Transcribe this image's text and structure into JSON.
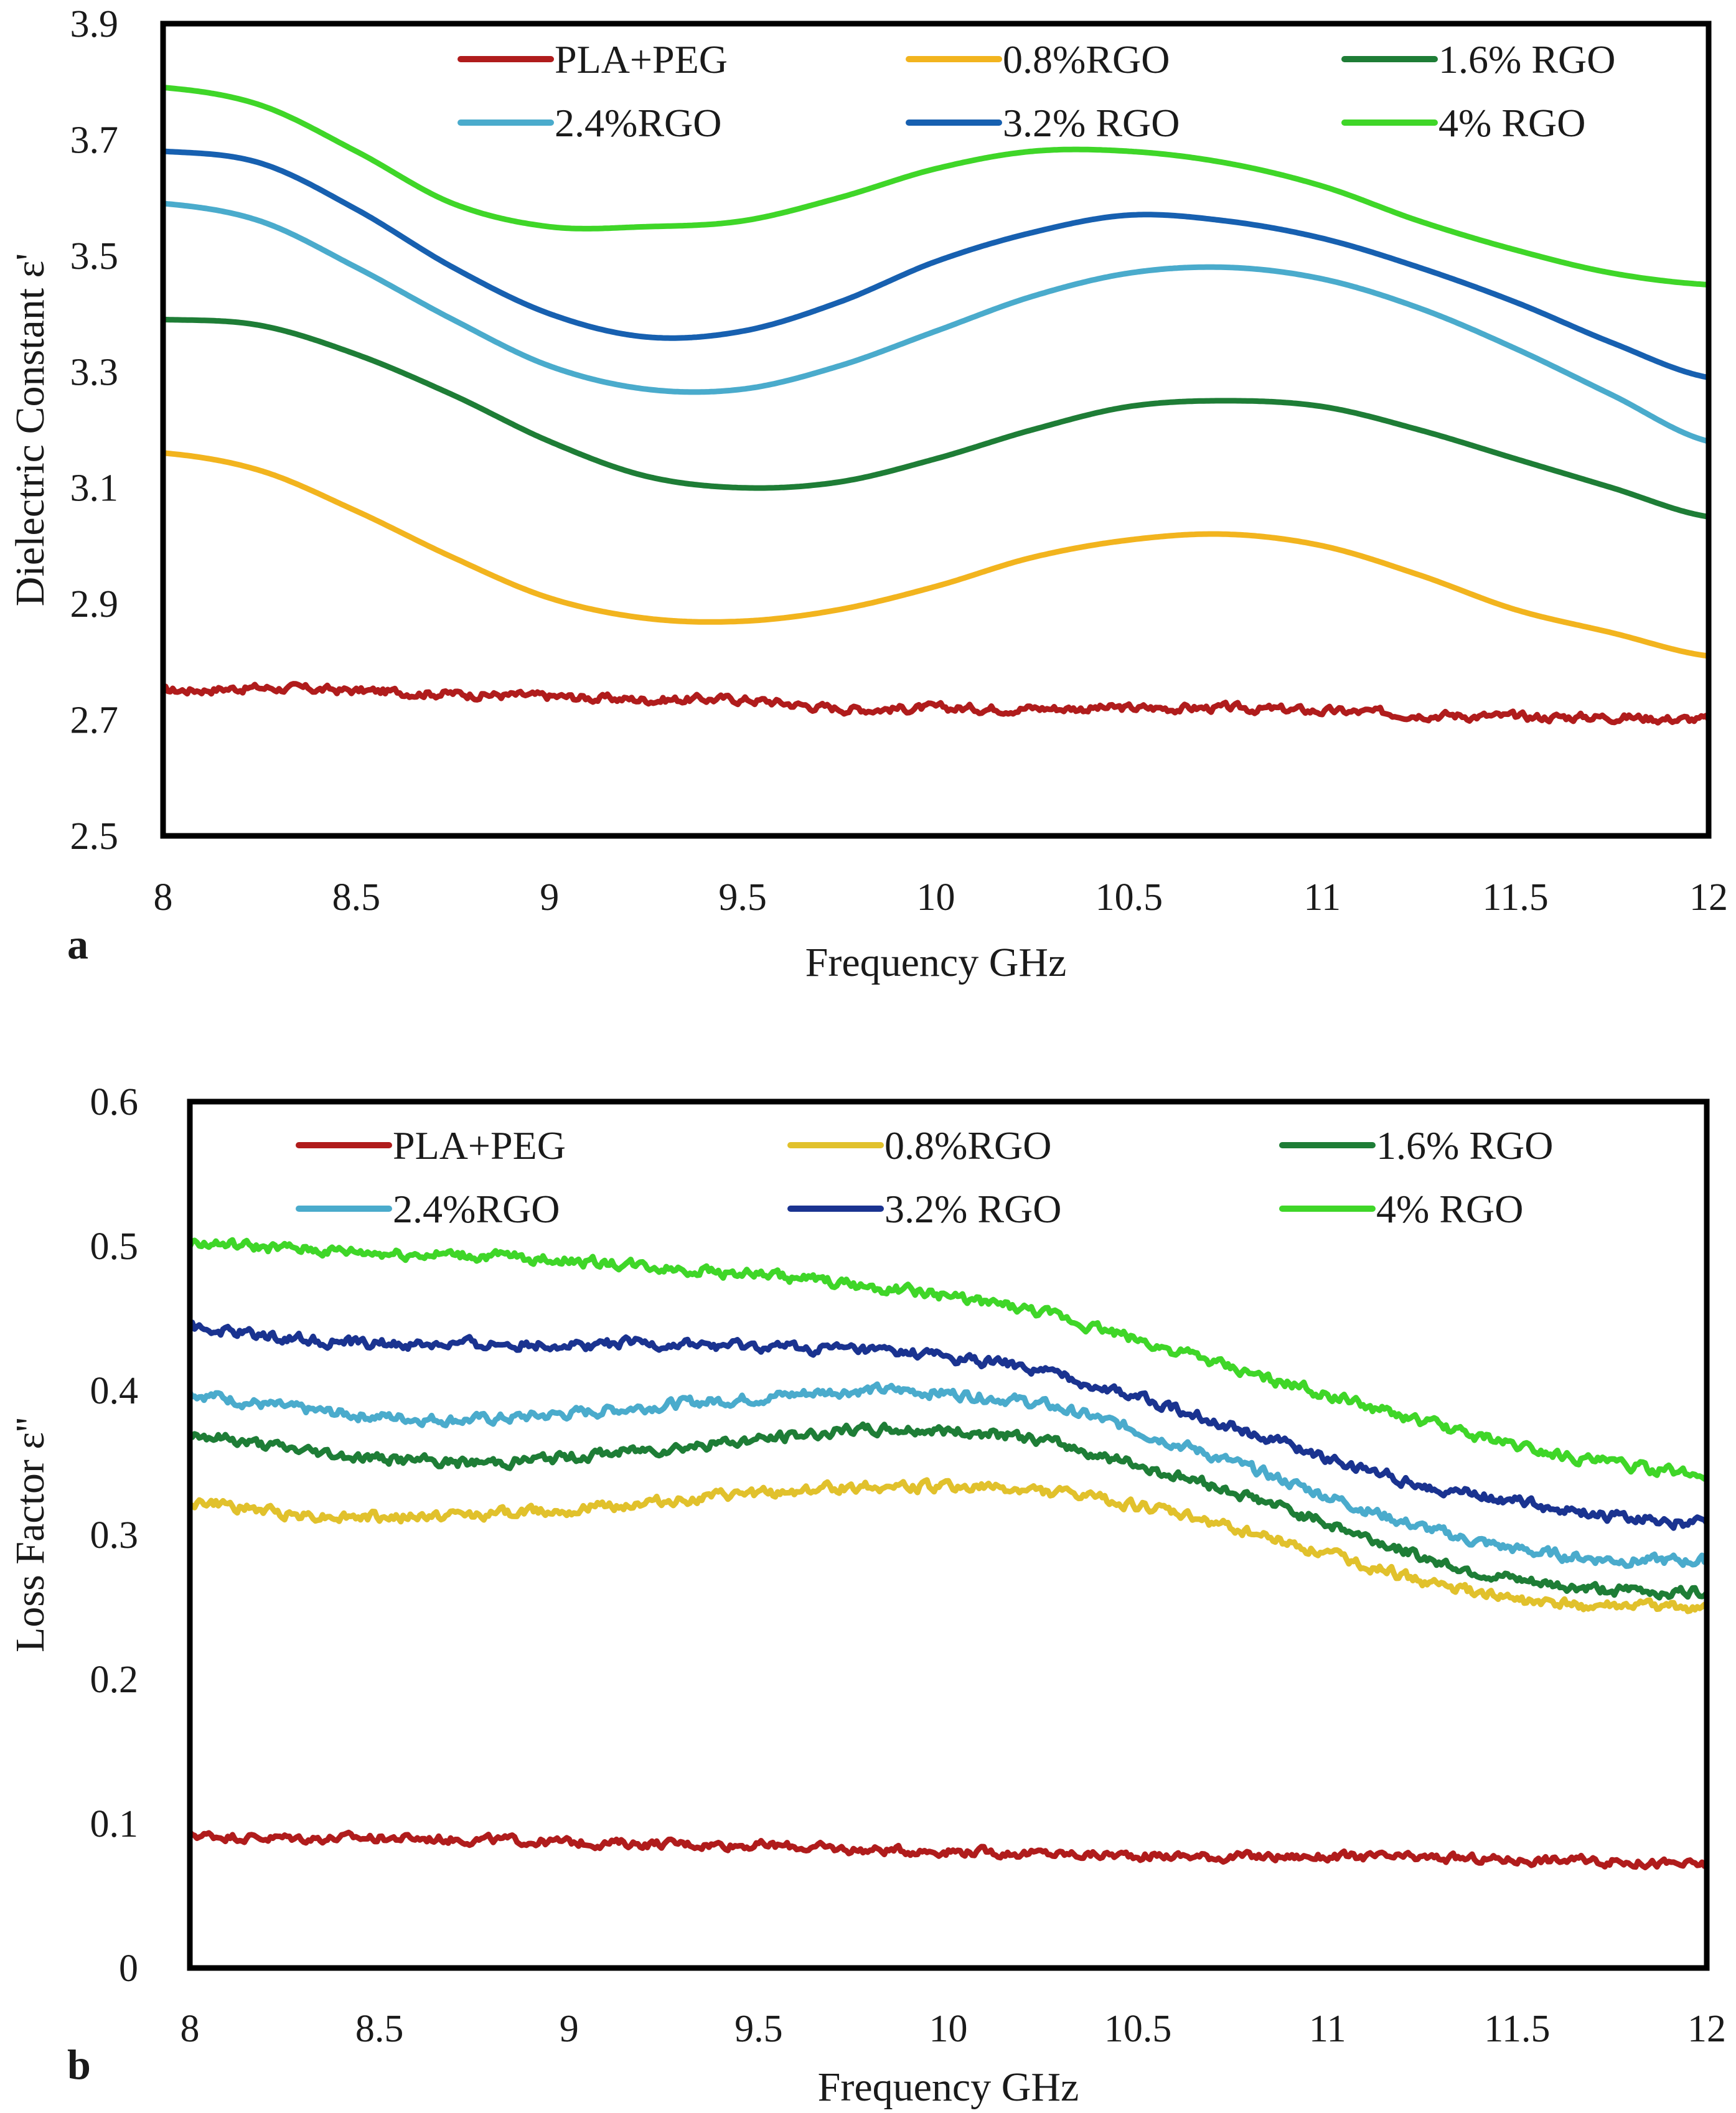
{
  "chart_data": [
    {
      "type": "line",
      "panel_label": "a",
      "title": "",
      "xlabel": "Frequency GHz",
      "ylabel": "Dielectric Constant ε'",
      "xlim": [
        8,
        12
      ],
      "ylim": [
        2.5,
        3.9
      ],
      "x_ticks": [
        "8",
        "8.5",
        "9",
        "9.5",
        "10",
        "10.5",
        "11",
        "11.5",
        "12"
      ],
      "y_ticks": [
        "2.5",
        "2.7",
        "2.9",
        "3.1",
        "3.3",
        "3.5",
        "3.7",
        "3.9"
      ],
      "grid": false,
      "legend_position": "top",
      "x": [
        8,
        8.25,
        8.5,
        8.75,
        9,
        9.25,
        9.5,
        9.75,
        10,
        10.25,
        10.5,
        10.75,
        11,
        11.25,
        11.5,
        11.75,
        12
      ],
      "series": [
        {
          "name": "PLA+PEG",
          "color": "#b01c1c",
          "noise": 0.006,
          "values": [
            2.75,
            2.755,
            2.75,
            2.745,
            2.74,
            2.735,
            2.735,
            2.72,
            2.72,
            2.72,
            2.72,
            2.72,
            2.715,
            2.71,
            2.705,
            2.705,
            2.7
          ]
        },
        {
          "name": "0.8%RGO",
          "color": "#f2b41e",
          "noise": 0,
          "values": [
            3.16,
            3.13,
            3.06,
            2.98,
            2.91,
            2.875,
            2.87,
            2.89,
            2.93,
            2.98,
            3.01,
            3.02,
            3.0,
            2.95,
            2.89,
            2.85,
            2.81
          ]
        },
        {
          "name": "1.6% RGO",
          "color": "#1e7d36",
          "noise": 0,
          "values": [
            3.39,
            3.38,
            3.33,
            3.26,
            3.18,
            3.12,
            3.1,
            3.11,
            3.15,
            3.2,
            3.24,
            3.25,
            3.24,
            3.2,
            3.15,
            3.1,
            3.05
          ]
        },
        {
          "name": "2.4%RGO",
          "color": "#4aabcc",
          "noise": 0,
          "values": [
            3.59,
            3.56,
            3.48,
            3.39,
            3.31,
            3.27,
            3.27,
            3.31,
            3.37,
            3.43,
            3.47,
            3.48,
            3.46,
            3.41,
            3.34,
            3.26,
            3.18
          ]
        },
        {
          "name": "3.2% RGO",
          "color": "#1760b0",
          "noise": 0,
          "values": [
            3.68,
            3.66,
            3.58,
            3.48,
            3.4,
            3.36,
            3.37,
            3.42,
            3.49,
            3.54,
            3.57,
            3.56,
            3.53,
            3.48,
            3.42,
            3.35,
            3.29
          ]
        },
        {
          "name": "4% RGO",
          "color": "#3fd628",
          "noise": 0,
          "values": [
            3.79,
            3.76,
            3.68,
            3.59,
            3.55,
            3.55,
            3.56,
            3.6,
            3.65,
            3.68,
            3.68,
            3.66,
            3.62,
            3.56,
            3.51,
            3.47,
            3.45
          ]
        }
      ]
    },
    {
      "type": "line",
      "panel_label": "b",
      "title": "",
      "xlabel": "Frequency GHz",
      "ylabel": "Loss Factor ε''",
      "xlim": [
        8,
        12
      ],
      "ylim": [
        0,
        0.6
      ],
      "x_ticks": [
        "8",
        "8.5",
        "9",
        "9.5",
        "10",
        "10.5",
        "11",
        "11.5",
        "12"
      ],
      "y_ticks": [
        "0",
        "0.1",
        "0.2",
        "0.3",
        "0.4",
        "0.5",
        "0.6"
      ],
      "grid": false,
      "legend_position": "top",
      "x": [
        8,
        8.25,
        8.5,
        8.75,
        9,
        9.25,
        9.5,
        9.75,
        10,
        10.25,
        10.5,
        10.75,
        11,
        11.25,
        11.5,
        11.75,
        12
      ],
      "series": [
        {
          "name": "PLA+PEG",
          "color": "#b01c1c",
          "noise": 0.0025,
          "values": [
            0.092,
            0.09,
            0.09,
            0.089,
            0.087,
            0.086,
            0.085,
            0.082,
            0.081,
            0.079,
            0.078,
            0.077,
            0.077,
            0.076,
            0.075,
            0.074,
            0.071
          ]
        },
        {
          "name": "0.8%RGO",
          "color": "#e1c12c",
          "noise": 0.003,
          "values": [
            0.323,
            0.315,
            0.312,
            0.314,
            0.318,
            0.323,
            0.328,
            0.333,
            0.333,
            0.33,
            0.32,
            0.305,
            0.287,
            0.268,
            0.255,
            0.25,
            0.25
          ]
        },
        {
          "name": "1.6% RGO",
          "color": "#1e7d36",
          "noise": 0.003,
          "values": [
            0.37,
            0.36,
            0.353,
            0.35,
            0.354,
            0.36,
            0.366,
            0.372,
            0.372,
            0.365,
            0.348,
            0.33,
            0.308,
            0.285,
            0.268,
            0.262,
            0.26
          ]
        },
        {
          "name": "2.4%RGO",
          "color": "#4aabcc",
          "noise": 0.003,
          "values": [
            0.398,
            0.388,
            0.382,
            0.38,
            0.384,
            0.39,
            0.395,
            0.4,
            0.398,
            0.39,
            0.372,
            0.35,
            0.327,
            0.305,
            0.29,
            0.283,
            0.282
          ]
        },
        {
          "name": "3.2% RGO",
          "color": "#1a3390",
          "noise": 0.003,
          "values": [
            0.443,
            0.437,
            0.432,
            0.432,
            0.432,
            0.432,
            0.43,
            0.428,
            0.423,
            0.413,
            0.395,
            0.375,
            0.353,
            0.335,
            0.323,
            0.313,
            0.308
          ]
        },
        {
          "name": "4% RGO",
          "color": "#3fd628",
          "noise": 0.003,
          "values": [
            0.502,
            0.498,
            0.495,
            0.493,
            0.49,
            0.485,
            0.48,
            0.473,
            0.465,
            0.453,
            0.435,
            0.415,
            0.397,
            0.378,
            0.362,
            0.35,
            0.341
          ]
        }
      ]
    }
  ]
}
